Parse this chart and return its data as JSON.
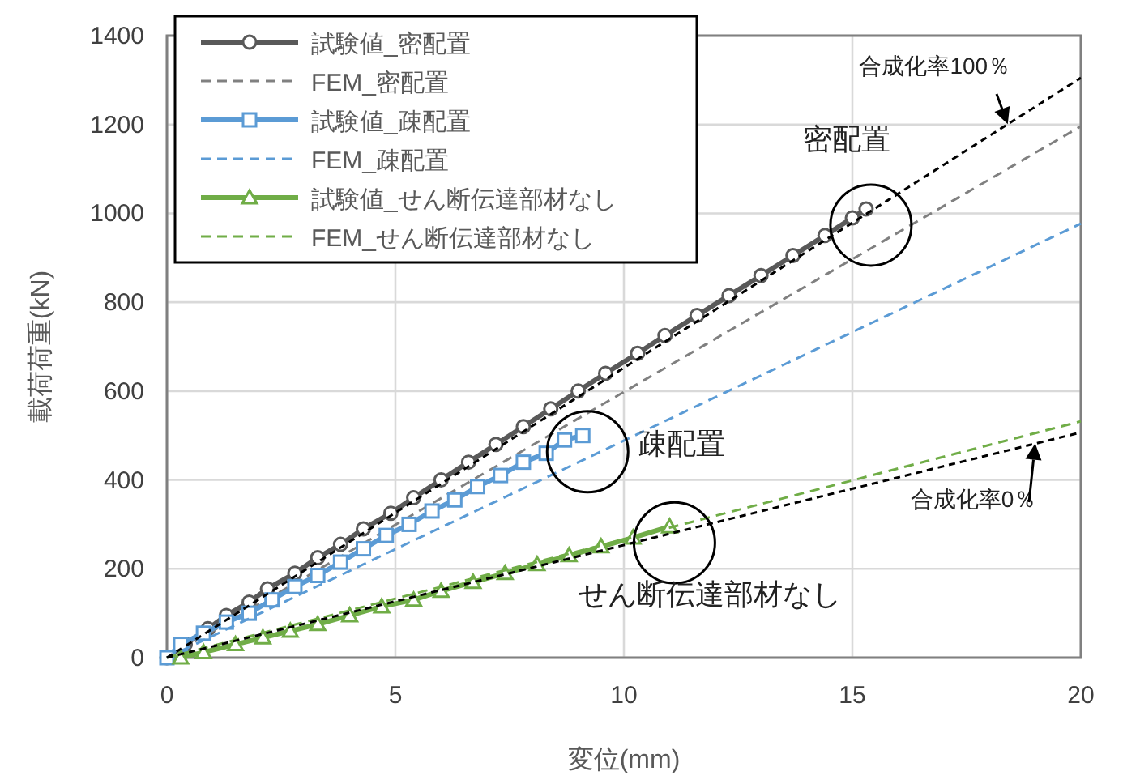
{
  "chart_data": {
    "type": "line",
    "xlabel": "変位(mm)",
    "ylabel": "載荷荷重(kN)",
    "xlim": [
      0,
      20
    ],
    "ylim": [
      0,
      1400
    ],
    "xticks": [
      0,
      5,
      10,
      15,
      20
    ],
    "yticks": [
      0,
      200,
      400,
      600,
      800,
      1000,
      1200,
      1400
    ],
    "grid": true,
    "legend": "top left",
    "series": [
      {
        "name": "試験値_密配置",
        "color": "#595959",
        "marker": "circle",
        "line_style": "solid",
        "x": [
          0,
          0.4,
          0.9,
          1.3,
          1.8,
          2.2,
          2.8,
          3.3,
          3.8,
          4.3,
          4.9,
          5.4,
          6.0,
          6.6,
          7.2,
          7.8,
          8.4,
          9.0,
          9.6,
          10.3,
          10.9,
          11.6,
          12.3,
          13.0,
          13.7,
          14.4,
          15.0,
          15.3
        ],
        "values": [
          0,
          30,
          65,
          95,
          125,
          155,
          190,
          225,
          255,
          290,
          325,
          360,
          400,
          440,
          480,
          520,
          560,
          600,
          640,
          685,
          725,
          770,
          815,
          860,
          905,
          950,
          990,
          1010
        ]
      },
      {
        "name": "FEM_密配置",
        "color": "#808080",
        "marker": "none",
        "line_style": "dashed",
        "x": [
          0,
          20
        ],
        "values": [
          0,
          1196
        ]
      },
      {
        "name": "試験値_疎配置",
        "color": "#5b9bd5",
        "marker": "square",
        "line_style": "solid",
        "x": [
          0,
          0.3,
          0.8,
          1.3,
          1.8,
          2.3,
          2.8,
          3.3,
          3.8,
          4.3,
          4.8,
          5.3,
          5.8,
          6.3,
          6.8,
          7.3,
          7.8,
          8.3,
          8.7,
          9.1
        ],
        "values": [
          0,
          30,
          55,
          80,
          100,
          130,
          160,
          185,
          215,
          245,
          275,
          300,
          330,
          355,
          385,
          410,
          440,
          460,
          490,
          500
        ]
      },
      {
        "name": "FEM_疎配置",
        "color": "#5b9bd5",
        "marker": "none",
        "line_style": "dashed",
        "x": [
          0,
          20
        ],
        "values": [
          0,
          977
        ]
      },
      {
        "name": "試験値_せん断伝達部材なし",
        "color": "#70ad47",
        "marker": "triangle",
        "line_style": "solid",
        "x": [
          0.3,
          0.8,
          1.5,
          2.1,
          2.7,
          3.3,
          4.0,
          4.7,
          5.4,
          6.0,
          6.7,
          7.4,
          8.1,
          8.8,
          9.5,
          10.2,
          11.0
        ],
        "values": [
          0,
          12,
          30,
          45,
          60,
          75,
          95,
          115,
          130,
          150,
          170,
          190,
          210,
          230,
          250,
          270,
          295
        ]
      },
      {
        "name": "FEM_せん断伝達部材なし",
        "color": "#70ad47",
        "marker": "none",
        "line_style": "dashed",
        "x": [
          0,
          20
        ],
        "values": [
          0,
          532
        ]
      },
      {
        "color": "#000000",
        "marker": "none",
        "line_style": "dotted",
        "x": [
          0,
          20
        ],
        "values": [
          0,
          1305
        ]
      },
      {
        "color": "#000000",
        "marker": "none",
        "line_style": "dotted",
        "x": [
          0,
          20
        ],
        "values": [
          0,
          507
        ]
      }
    ],
    "annotations": [
      {
        "text": "密配置",
        "x": 15.3,
        "y": 1010
      },
      {
        "text": "疎配置",
        "x": 9.1,
        "y": 500
      },
      {
        "text": "せん断伝達部材なし",
        "x": 11.0,
        "y": 295
      },
      {
        "text": "合成化率100％",
        "x": 18.4,
        "y": 1201
      },
      {
        "text": "合成化率0％",
        "x": 19.0,
        "y": 482
      }
    ]
  }
}
